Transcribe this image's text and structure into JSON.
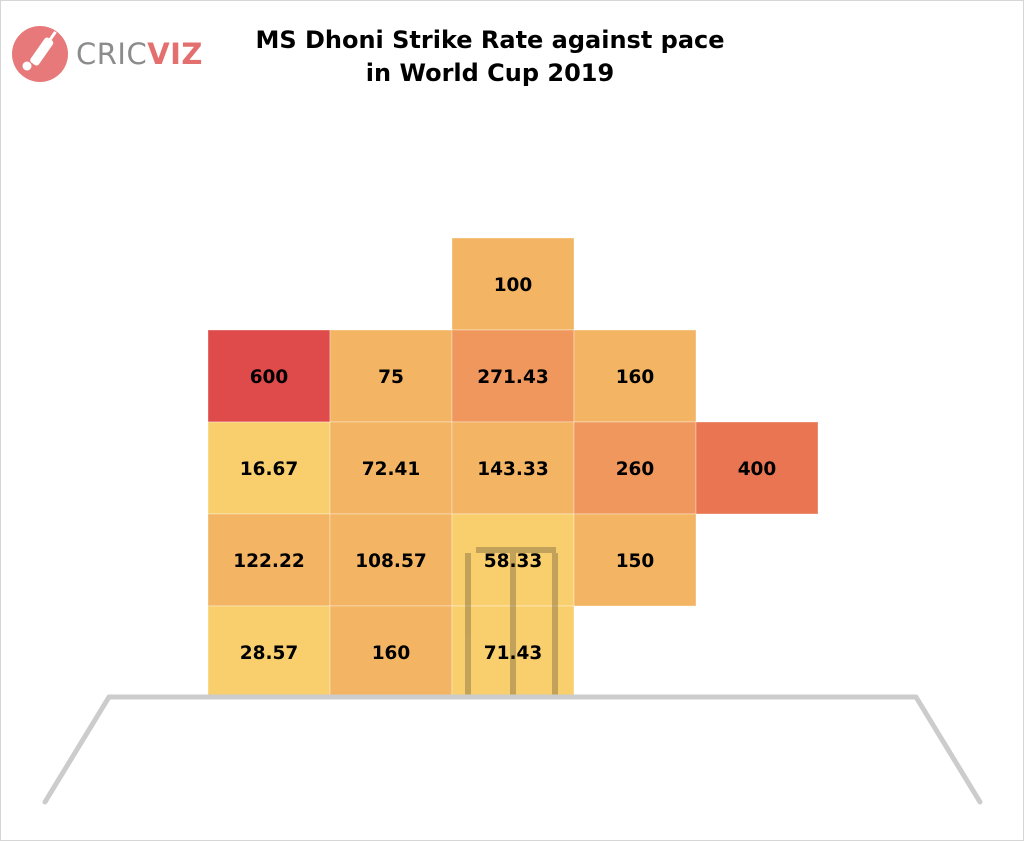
{
  "brand": {
    "prefix": "CRIC",
    "suffix": "VIZ"
  },
  "chart_data": {
    "type": "heatmap",
    "title": "MS Dhoni Strike Rate against pace",
    "subtitle": "in World Cup 2019",
    "colors": {
      "light": "#f9cf6e",
      "mid": "#f3b563",
      "warm": "#f0975d",
      "hot": "#e97552",
      "max": "#df4a4a"
    },
    "cells": [
      {
        "row": 0,
        "col": 2,
        "value": 100,
        "label": "100",
        "color": "mid"
      },
      {
        "row": 1,
        "col": 0,
        "value": 600,
        "label": "600",
        "color": "max"
      },
      {
        "row": 1,
        "col": 1,
        "value": 75,
        "label": "75",
        "color": "mid"
      },
      {
        "row": 1,
        "col": 2,
        "value": 271.43,
        "label": "271.43",
        "color": "warm"
      },
      {
        "row": 1,
        "col": 3,
        "value": 160,
        "label": "160",
        "color": "mid"
      },
      {
        "row": 2,
        "col": 0,
        "value": 16.67,
        "label": "16.67",
        "color": "light"
      },
      {
        "row": 2,
        "col": 1,
        "value": 72.41,
        "label": "72.41",
        "color": "mid"
      },
      {
        "row": 2,
        "col": 2,
        "value": 143.33,
        "label": "143.33",
        "color": "mid"
      },
      {
        "row": 2,
        "col": 3,
        "value": 260,
        "label": "260",
        "color": "warm"
      },
      {
        "row": 2,
        "col": 4,
        "value": 400,
        "label": "400",
        "color": "hot"
      },
      {
        "row": 3,
        "col": 0,
        "value": 122.22,
        "label": "122.22",
        "color": "mid"
      },
      {
        "row": 3,
        "col": 1,
        "value": 108.57,
        "label": "108.57",
        "color": "mid"
      },
      {
        "row": 3,
        "col": 2,
        "value": 58.33,
        "label": "58.33",
        "color": "light"
      },
      {
        "row": 3,
        "col": 3,
        "value": 150,
        "label": "150",
        "color": "mid"
      },
      {
        "row": 4,
        "col": 0,
        "value": 28.57,
        "label": "28.57",
        "color": "light"
      },
      {
        "row": 4,
        "col": 1,
        "value": 160,
        "label": "160",
        "color": "mid"
      },
      {
        "row": 4,
        "col": 2,
        "value": 71.43,
        "label": "71.43",
        "color": "light"
      }
    ]
  }
}
